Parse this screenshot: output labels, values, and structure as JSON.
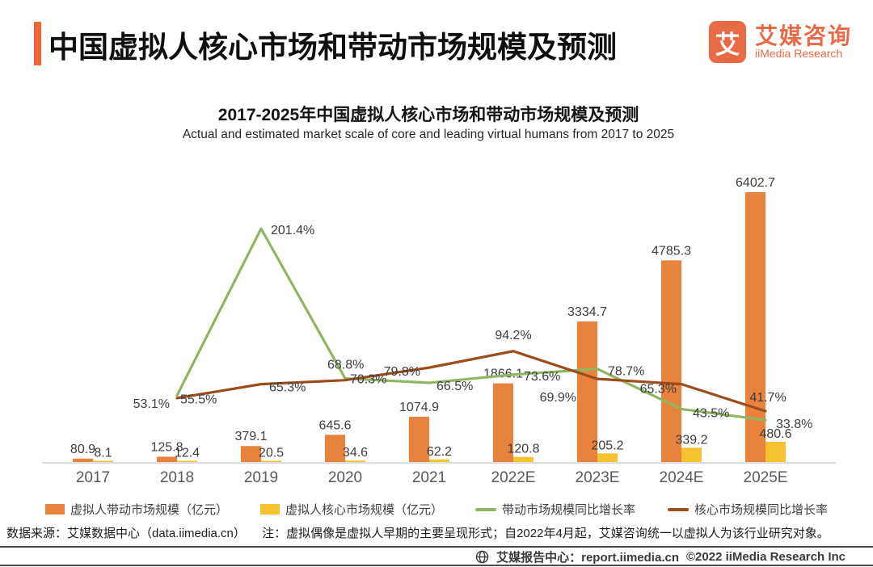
{
  "header": {
    "title": "中国虚拟人核心市场和带动市场规模及预测",
    "accent_color": "#ec6733",
    "brand_color": "#e86b46",
    "logo_glyph": "艾",
    "brand_cn": "艾媒咨询",
    "brand_en": "iiMedia Research"
  },
  "chart": {
    "title": "2017-2025年中国虚拟人核心市场和带动市场规模及预测",
    "subtitle": "Actual and estimated market scale of core and leading virtual humans from 2017 to 2025"
  },
  "chart_data": {
    "type": "bar+line",
    "categories": [
      "2017",
      "2018",
      "2019",
      "2020",
      "2021",
      "2022E",
      "2023E",
      "2024E",
      "2025E"
    ],
    "series": [
      {
        "name": "虚拟人带动市场规模（亿元）",
        "type": "bar",
        "color": "#e8823c",
        "values": [
          80.9,
          125.8,
          379.1,
          645.6,
          1074.9,
          1866.1,
          3334.7,
          4785.3,
          6402.7
        ]
      },
      {
        "name": "虚拟人核心市场规模（亿元）",
        "type": "bar",
        "color": "#f5c230",
        "values": [
          8.1,
          12.4,
          20.5,
          34.6,
          62.2,
          120.8,
          205.2,
          339.2,
          480.6
        ]
      },
      {
        "name": "带动市场规模同比增长率",
        "type": "line",
        "color": "#8fb662",
        "unit": "%",
        "values": [
          null,
          55.5,
          201.4,
          70.3,
          66.5,
          73.6,
          78.7,
          43.5,
          33.8
        ]
      },
      {
        "name": "核心市场规模同比增长率",
        "type": "line",
        "color": "#9b4d1e",
        "unit": "%",
        "values": [
          null,
          53.1,
          65.3,
          68.8,
          79.8,
          94.2,
          69.9,
          65.3,
          41.7
        ]
      }
    ],
    "bar_unit": "亿元",
    "bar_ylim": [
      0,
      6700
    ],
    "pct_ylim": [
      0,
      230
    ],
    "grid": false,
    "legend_position": "bottom",
    "label_color": "#3d3d3d",
    "axis_label_color": "#595959",
    "axis_line_color": "#dcdcdc"
  },
  "footer": {
    "source": "数据来源：艾媒数据中心（data.iimedia.cn）",
    "note": "注：虚拟偶像是虚拟人早期的主要呈现形式；自2022年4月起，艾媒咨询统一以虚拟人为该行业研究对象。"
  },
  "bottom_bar": {
    "report_center": "艾媒报告中心：report.iimedia.cn",
    "copyright": "©2022 iiMedia Research Inc"
  }
}
